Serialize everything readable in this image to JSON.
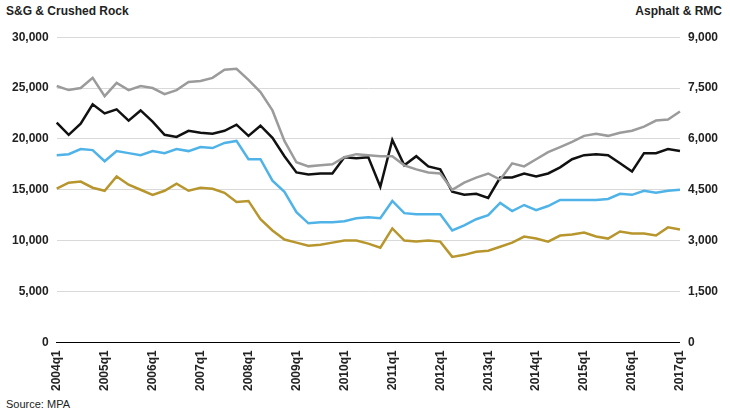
{
  "chart_data": {
    "type": "line",
    "y_label": "S&G & Crushed Rock",
    "y2_label": "Asphalt & RMC",
    "source": "Source: MPA",
    "categories": [
      "2004q1",
      null,
      null,
      null,
      "2005q1",
      null,
      null,
      null,
      "2006q1",
      null,
      null,
      null,
      "2007q1",
      null,
      null,
      null,
      "2008q1",
      null,
      null,
      null,
      "2009q1",
      null,
      null,
      null,
      "2010q1",
      null,
      null,
      null,
      "2011q1",
      null,
      null,
      null,
      "2012q1",
      null,
      null,
      null,
      "2013q1",
      null,
      null,
      null,
      "2014q1",
      null,
      null,
      null,
      "2015q1",
      null,
      null,
      null,
      "2016q1",
      null,
      null,
      null,
      "2017q1"
    ],
    "series": [
      {
        "color": "#9b9b9b",
        "axis": "y",
        "values": [
          25200,
          24800,
          25000,
          26000,
          24200,
          25500,
          24800,
          25200,
          25000,
          24400,
          24800,
          25600,
          25700,
          26000,
          26800,
          26900,
          25800,
          24600,
          22800,
          19800,
          17700,
          17300,
          17400,
          17500,
          18200,
          18500,
          18400,
          18300,
          18300,
          17400,
          17000,
          16700,
          16600,
          15000,
          15700,
          16200,
          16600,
          16000,
          17600,
          17300,
          18000,
          18700,
          19200,
          19700,
          20300,
          20500,
          20300,
          20600,
          20800,
          21200,
          21800,
          21900,
          22700
        ]
      },
      {
        "color": "#111111",
        "axis": "y2",
        "values": [
          6480,
          6120,
          6450,
          7020,
          6750,
          6870,
          6540,
          6840,
          6510,
          6120,
          6060,
          6240,
          6180,
          6150,
          6240,
          6420,
          6090,
          6390,
          6030,
          5490,
          5010,
          4950,
          4980,
          4980,
          5460,
          5430,
          5460,
          4590,
          5970,
          5220,
          5490,
          5190,
          5100,
          4440,
          4350,
          4380,
          4260,
          4860,
          4860,
          4980,
          4890,
          4980,
          5160,
          5400,
          5520,
          5550,
          5520,
          5280,
          5040,
          5580,
          5580,
          5700,
          5640
        ]
      },
      {
        "color": "#4fb3e8",
        "axis": "y",
        "values": [
          18400,
          18500,
          19000,
          18900,
          17800,
          18800,
          18600,
          18400,
          18800,
          18600,
          19000,
          18800,
          19200,
          19100,
          19600,
          19800,
          18000,
          18000,
          15900,
          14800,
          12800,
          11700,
          11800,
          11800,
          11900,
          12200,
          12300,
          12200,
          13900,
          12700,
          12600,
          12600,
          12600,
          11000,
          11500,
          12100,
          12500,
          13700,
          12900,
          13500,
          13000,
          13400,
          14000,
          14000,
          14000,
          14000,
          14100,
          14600,
          14500,
          14900,
          14700,
          14900,
          15000
        ]
      },
      {
        "color": "#b8962e",
        "axis": "y2",
        "values": [
          4530,
          4710,
          4740,
          4560,
          4470,
          4890,
          4650,
          4500,
          4350,
          4470,
          4680,
          4470,
          4560,
          4530,
          4410,
          4140,
          4170,
          3630,
          3300,
          3030,
          2940,
          2850,
          2880,
          2940,
          3000,
          3000,
          2910,
          2790,
          3360,
          3000,
          2970,
          3000,
          2970,
          2520,
          2580,
          2670,
          2700,
          2820,
          2940,
          3120,
          3060,
          2970,
          3150,
          3180,
          3240,
          3120,
          3060,
          3270,
          3210,
          3210,
          3150,
          3390,
          3330
        ]
      }
    ],
    "ylim": [
      0,
      30000
    ],
    "yticks": [
      0,
      {
        "value": 5000,
        "label": "5,000"
      },
      {
        "value": 10000,
        "label": "10,000"
      },
      {
        "value": 15000,
        "label": "15,000"
      },
      {
        "value": 20000,
        "label": "20,000"
      },
      {
        "value": 25000,
        "label": "25,000"
      },
      {
        "value": 30000,
        "label": "30,000"
      }
    ],
    "y2lim": [
      0,
      9000
    ],
    "y2ticks": [
      0,
      {
        "value": 1500,
        "label": "1,500"
      },
      {
        "value": 3000,
        "label": "3,000"
      },
      {
        "value": 4500,
        "label": "4,500"
      },
      {
        "value": 6000,
        "label": "6,000"
      },
      {
        "value": 7500,
        "label": "7,500"
      },
      {
        "value": 9000,
        "label": "9,000"
      }
    ],
    "grid": true
  }
}
